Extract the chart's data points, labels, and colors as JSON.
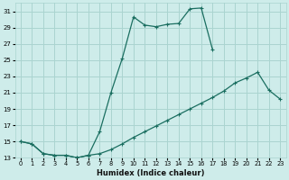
{
  "xlabel": "Humidex (Indice chaleur)",
  "background_color": "#ceecea",
  "grid_color": "#aad4d0",
  "line_color": "#1a6e60",
  "xlim": [
    -0.5,
    23.5
  ],
  "ylim": [
    13,
    32
  ],
  "xticks": [
    0,
    1,
    2,
    3,
    4,
    5,
    6,
    7,
    8,
    9,
    10,
    11,
    12,
    13,
    14,
    15,
    16,
    17,
    18,
    19,
    20,
    21,
    22,
    23
  ],
  "yticks": [
    13,
    15,
    17,
    19,
    21,
    23,
    25,
    27,
    29,
    31
  ],
  "curve1_x": [
    0,
    1,
    2,
    3,
    4,
    5,
    6,
    7,
    8,
    9,
    10,
    11,
    12,
    13,
    14,
    15,
    16,
    17
  ],
  "curve1_y": [
    15,
    14.7,
    13.5,
    13.3,
    13.3,
    13.0,
    13.3,
    16.2,
    21.0,
    25.2,
    30.3,
    29.3,
    29.1,
    29.4,
    29.5,
    31.3,
    31.4,
    26.3
  ],
  "curve2_x": [
    0,
    1,
    2,
    3,
    4,
    5,
    6,
    7,
    8,
    9,
    10,
    11,
    12,
    13,
    14,
    15,
    16,
    17,
    18,
    19,
    20,
    21,
    22,
    23
  ],
  "curve2_y": [
    15,
    14.7,
    13.5,
    13.3,
    13.3,
    13.0,
    13.3,
    13.5,
    14.0,
    14.7,
    15.5,
    16.2,
    16.9,
    17.6,
    18.3,
    19.0,
    19.7,
    20.4,
    21.2,
    22.2,
    22.8,
    23.5,
    21.3,
    20.2
  ]
}
